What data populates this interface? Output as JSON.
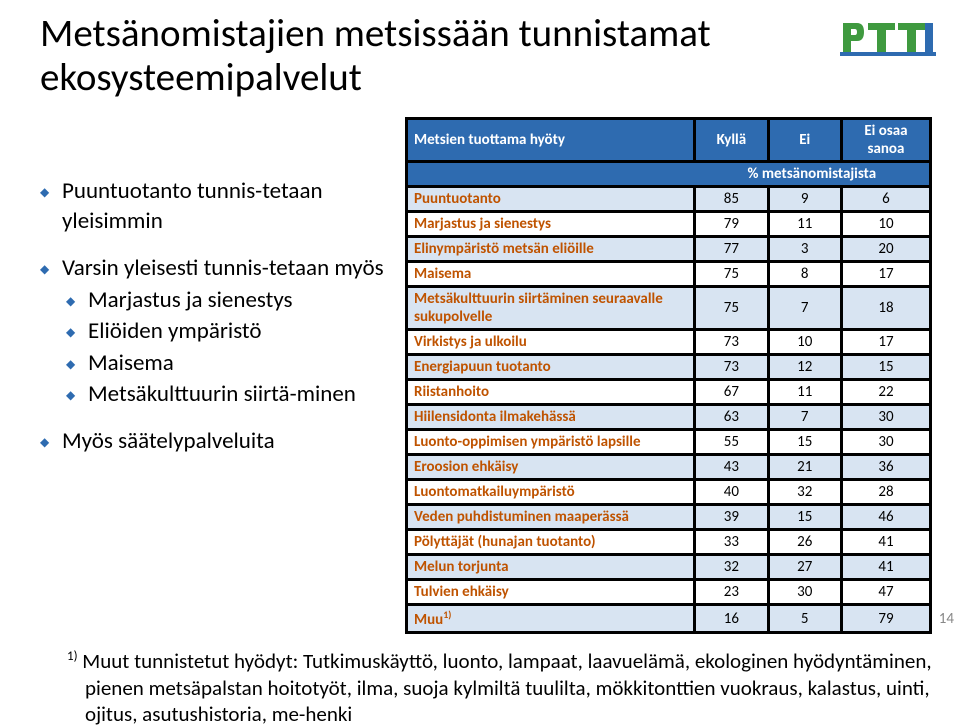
{
  "title_line1": "Metsänomistajien metsissään tunnistamat",
  "title_line2": "ekosysteemipalvelut",
  "page_number": "14",
  "logo": {
    "text_top": "PTT",
    "fill_green": "#3f9a3f",
    "fill_blue": "#2e6bb0"
  },
  "bullets": {
    "group1_heading": "Puuntuotanto tunnis-tetaan yleisimmin",
    "group2_heading": "Varsin yleisesti tunnis-tetaan myös",
    "group2_items": [
      "Marjastus ja sienestys",
      "Eliöiden ympäristö",
      "Maisema",
      "Metsäkulttuurin siirtä-minen"
    ],
    "group3_heading": "Myös säätelypalveluita"
  },
  "table": {
    "head_label": "Metsien tuottama hyöty",
    "head_kylla": "Kyllä",
    "head_ei": "Ei",
    "head_eiosaa_l1": "Ei osaa",
    "head_eiosaa_l2": "sanoa",
    "subhead": "% metsänomistajista",
    "rows": [
      {
        "label": "Puuntuotanto",
        "kylla": 85,
        "ei": 9,
        "eiosaa": 6
      },
      {
        "label": "Marjastus ja sienestys",
        "kylla": 79,
        "ei": 11,
        "eiosaa": 10
      },
      {
        "label": "Elinympäristö metsän eliöille",
        "kylla": 77,
        "ei": 3,
        "eiosaa": 20
      },
      {
        "label": "Maisema",
        "kylla": 75,
        "ei": 8,
        "eiosaa": 17
      },
      {
        "label": "Metsäkulttuurin siirtäminen seuraavalle sukupolvelle",
        "kylla": 75,
        "ei": 7,
        "eiosaa": 18
      },
      {
        "label": "Virkistys ja ulkoilu",
        "kylla": 73,
        "ei": 10,
        "eiosaa": 17
      },
      {
        "label": "Energiapuun tuotanto",
        "kylla": 73,
        "ei": 12,
        "eiosaa": 15
      },
      {
        "label": "Riistanhoito",
        "kylla": 67,
        "ei": 11,
        "eiosaa": 22
      },
      {
        "label": "Hiilensidonta ilmakehässä",
        "kylla": 63,
        "ei": 7,
        "eiosaa": 30
      },
      {
        "label": "Luonto-oppimisen ympäristö lapsille",
        "kylla": 55,
        "ei": 15,
        "eiosaa": 30
      },
      {
        "label": "Eroosion ehkäisy",
        "kylla": 43,
        "ei": 21,
        "eiosaa": 36
      },
      {
        "label": "Luontomatkailuympäristö",
        "kylla": 40,
        "ei": 32,
        "eiosaa": 28
      },
      {
        "label": "Veden puhdistuminen maaperässä",
        "kylla": 39,
        "ei": 15,
        "eiosaa": 46
      },
      {
        "label": "Pölyttäjät (hunajan tuotanto)",
        "kylla": 33,
        "ei": 26,
        "eiosaa": 41
      },
      {
        "label": "Melun torjunta",
        "kylla": 32,
        "ei": 27,
        "eiosaa": 41
      },
      {
        "label": "Tulvien ehkäisy",
        "kylla": 23,
        "ei": 30,
        "eiosaa": 47
      },
      {
        "label": "Muu",
        "sup": "1)",
        "kylla": 16,
        "ei": 5,
        "eiosaa": 79
      }
    ],
    "row_bg_odd": "#d8e4f2",
    "row_bg_even": "#ffffff",
    "row_label_color": "#bf5300",
    "header_bg": "#2e6bb0",
    "border_color": "#000000"
  },
  "footnote_sup": "1)",
  "footnote_text": " Muut tunnistetut hyödyt: Tutkimuskäyttö, luonto, lampaat, laavuelämä, ekologinen hyödyntäminen, pienen metsäpalstan hoitotyöt, ilma, suoja kylmiltä tuulilta, mökkitonttien vuokraus, kalastus, uinti, ojitus, asutushistoria, me-henki"
}
